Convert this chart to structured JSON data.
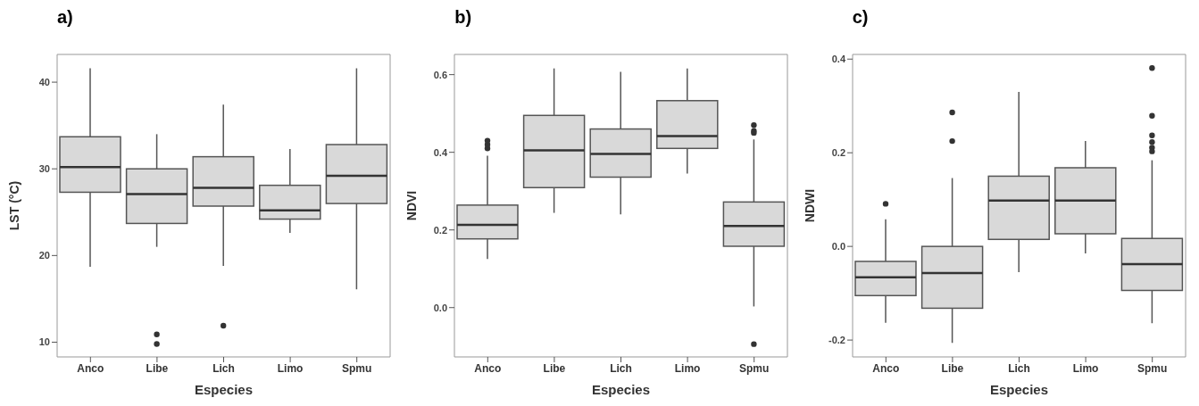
{
  "chart_data": [
    {
      "type": "box",
      "title": "a)",
      "xlabel": "Especies",
      "ylabel": "LST (°C)",
      "categories": [
        "Anco",
        "Libe",
        "Lich",
        "Limo",
        "Spmu"
      ],
      "ylim": [
        8.3,
        43.2
      ],
      "yticks": [
        10,
        20,
        30,
        40
      ],
      "boxes": [
        {
          "low": 18.7,
          "q1": 27.3,
          "median": 30.2,
          "q3": 33.7,
          "high": 41.6
        },
        {
          "low": 21.0,
          "q1": 23.7,
          "median": 27.1,
          "q3": 30.0,
          "high": 34.0,
          "outliers": [
            10.9,
            9.8
          ]
        },
        {
          "low": 18.8,
          "q1": 25.7,
          "median": 27.8,
          "q3": 31.4,
          "high": 37.4,
          "outliers": [
            11.9
          ]
        },
        {
          "low": 22.6,
          "q1": 24.2,
          "median": 25.2,
          "q3": 28.1,
          "high": 32.3
        },
        {
          "low": 16.1,
          "q1": 26.0,
          "median": 29.2,
          "q3": 32.8,
          "high": 41.6
        }
      ]
    },
    {
      "type": "box",
      "title": "b)",
      "xlabel": "Especies",
      "ylabel": "NDVI",
      "categories": [
        "Anco",
        "Libe",
        "Lich",
        "Limo",
        "Spmu"
      ],
      "ylim": [
        -0.127,
        0.652
      ],
      "yticks": [
        {
          "value": 0,
          "label": "0.0"
        },
        0.2,
        0.4,
        0.6
      ],
      "boxes": [
        {
          "low": 0.125,
          "q1": 0.177,
          "median": 0.213,
          "q3": 0.264,
          "high": 0.391,
          "outliers": [
            0.41,
            0.42,
            0.43
          ]
        },
        {
          "low": 0.244,
          "q1": 0.309,
          "median": 0.405,
          "q3": 0.495,
          "high": 0.616
        },
        {
          "low": 0.24,
          "q1": 0.336,
          "median": 0.396,
          "q3": 0.46,
          "high": 0.607
        },
        {
          "low": 0.345,
          "q1": 0.41,
          "median": 0.442,
          "q3": 0.533,
          "high": 0.616
        },
        {
          "low": 0.003,
          "q1": 0.158,
          "median": 0.21,
          "q3": 0.272,
          "high": 0.433,
          "outliers": [
            0.47,
            0.455,
            0.45,
            -0.094
          ]
        }
      ]
    },
    {
      "type": "box",
      "title": "c)",
      "xlabel": "Especies",
      "ylabel": "NDWI",
      "categories": [
        "Anco",
        "Libe",
        "Lich",
        "Limo",
        "Spmu"
      ],
      "ylim": [
        -0.236,
        0.41
      ],
      "yticks": [
        -0.2,
        {
          "value": 0,
          "label": "0.0"
        },
        0.2,
        0.4
      ],
      "boxes": [
        {
          "low": -0.163,
          "q1": -0.105,
          "median": -0.066,
          "q3": -0.032,
          "high": 0.058,
          "outliers": [
            0.091
          ]
        },
        {
          "low": -0.206,
          "q1": -0.132,
          "median": -0.057,
          "q3": 0.0,
          "high": 0.146,
          "outliers": [
            0.286,
            0.225
          ]
        },
        {
          "low": -0.055,
          "q1": 0.015,
          "median": 0.098,
          "q3": 0.15,
          "high": 0.33
        },
        {
          "low": -0.015,
          "q1": 0.027,
          "median": 0.098,
          "q3": 0.168,
          "high": 0.225
        },
        {
          "low": -0.164,
          "q1": -0.094,
          "median": -0.038,
          "q3": 0.017,
          "high": 0.184,
          "outliers": [
            0.381,
            0.279,
            0.237,
            0.223,
            0.211,
            0.203
          ]
        }
      ]
    }
  ]
}
